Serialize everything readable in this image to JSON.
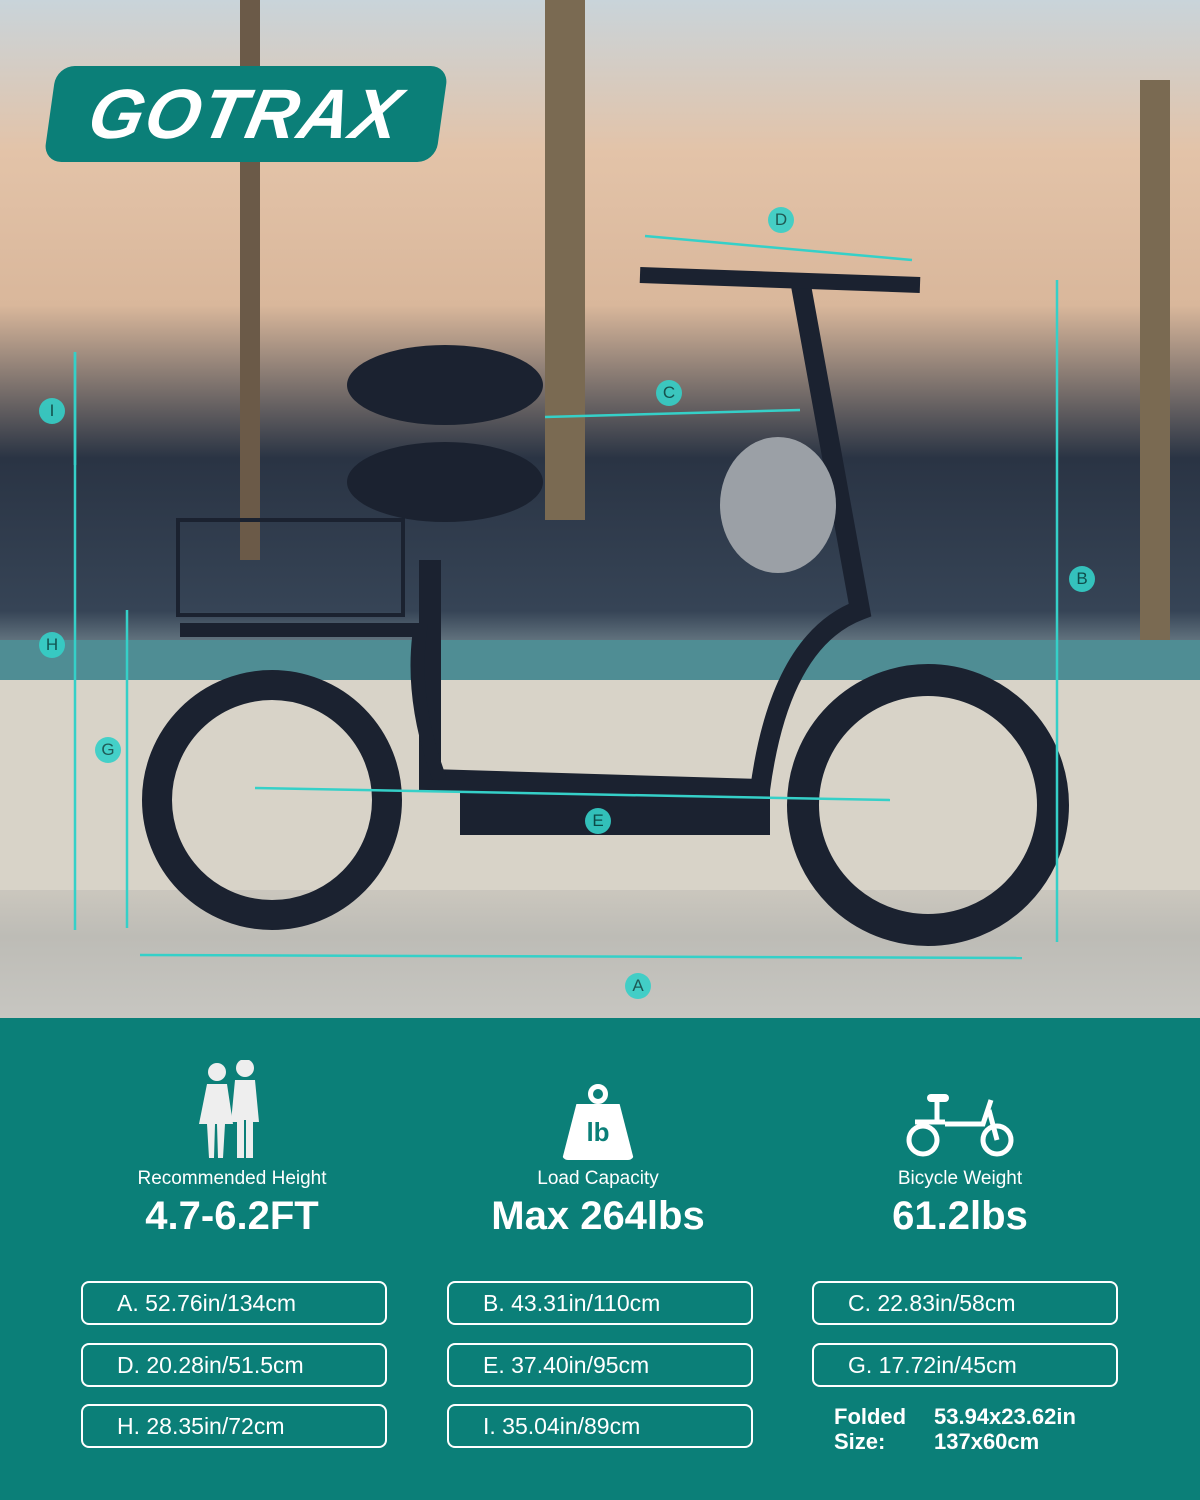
{
  "brand": {
    "logo_text": "GOTRAX",
    "color": "#0b7f78"
  },
  "diagram_labels": [
    "A",
    "B",
    "C",
    "D",
    "E",
    "G",
    "H",
    "I"
  ],
  "features": [
    {
      "icon": "people-icon",
      "label": "Recommended Height",
      "value": "4.7-6.2FT"
    },
    {
      "icon": "weight-icon",
      "icon_text": "lb",
      "label": "Load Capacity",
      "value": "Max 264lbs"
    },
    {
      "icon": "bicycle-icon",
      "label": "Bicycle Weight",
      "value": "61.2lbs"
    }
  ],
  "dimensions": [
    "A. 52.76in/134cm",
    "B. 43.31in/110cm",
    "C. 22.83in/58cm",
    "D. 20.28in/51.5cm",
    "E. 37.40in/95cm",
    "G. 17.72in/45cm",
    "H. 28.35in/72cm",
    "I. 35.04in/89cm"
  ],
  "folded": {
    "label1": "Folded",
    "label2": "Size:",
    "value1": "53.94x23.62in",
    "value2": "137x60cm"
  },
  "accent_color": "#35d0c8"
}
